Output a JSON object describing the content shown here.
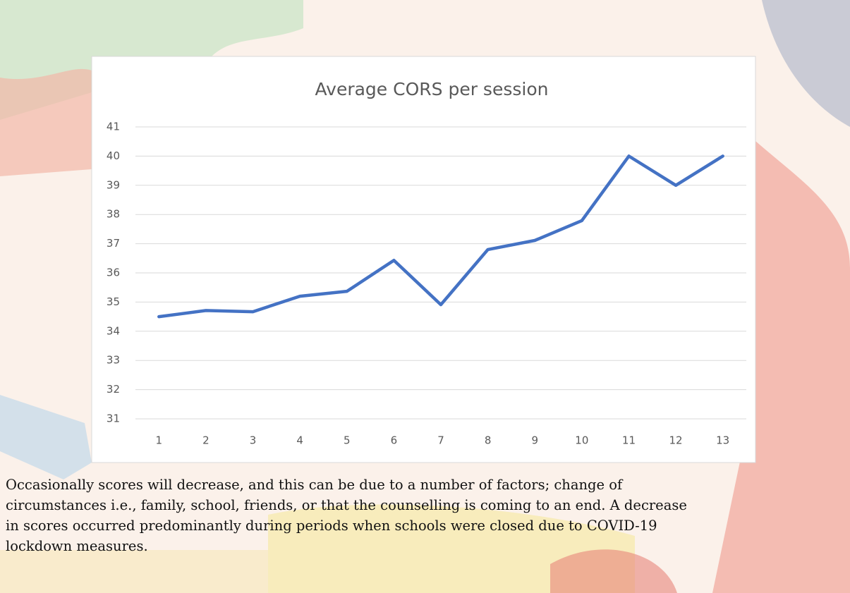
{
  "chart_data": {
    "type": "line",
    "title": "Average CORS per session",
    "categories": [
      1,
      2,
      3,
      4,
      5,
      6,
      7,
      8,
      9,
      10,
      11,
      12,
      13
    ],
    "values": [
      34.5,
      34.71,
      34.67,
      35.2,
      35.37,
      36.43,
      34.91,
      36.8,
      37.11,
      37.79,
      40.0,
      39.0,
      40.0
    ],
    "color": "#4472c4",
    "ylim": [
      31,
      41
    ],
    "yticks": [
      31,
      32,
      33,
      34,
      35,
      36,
      37,
      38,
      39,
      40,
      41
    ],
    "grid": true
  },
  "caption_lines": [
    "Occasionally scores will decrease, and this can be due to a number of factors; change of",
    "circumstances i.e., family, school, friends, or that the counselling is coming to an end.  A decrease",
    "in scores occurred predominantly during periods when schools were closed due to COVID-19",
    "lockdown measures."
  ]
}
